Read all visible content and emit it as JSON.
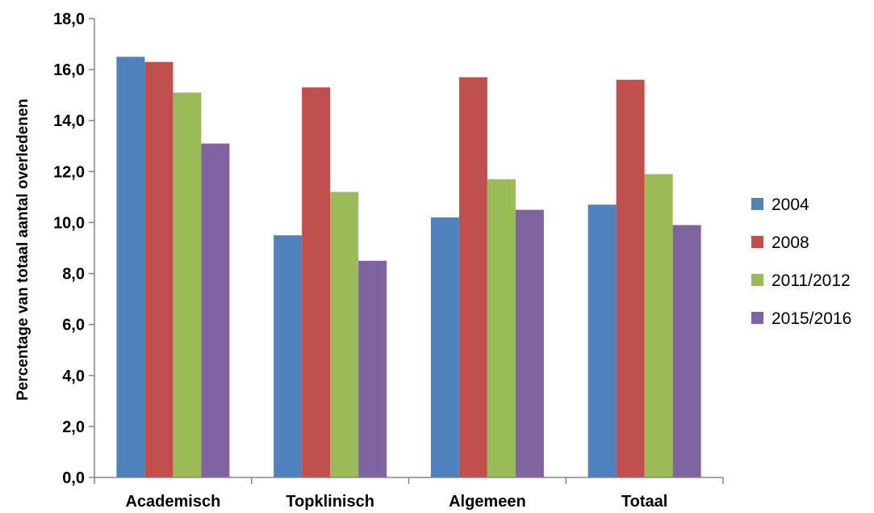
{
  "chart_data": {
    "type": "bar",
    "title": "",
    "xlabel": "",
    "ylabel": "Percentage van totaal aantal overledenen",
    "categories": [
      "Academisch",
      "Topklinisch",
      "Algemeen",
      "Totaal"
    ],
    "series": [
      {
        "name": "2004",
        "color": "#4F81BD",
        "values": [
          16.5,
          9.5,
          10.2,
          10.7
        ]
      },
      {
        "name": "2008",
        "color": "#C0504D",
        "values": [
          16.3,
          15.3,
          15.7,
          15.6
        ]
      },
      {
        "name": "2011/2012",
        "color": "#9BBB59",
        "values": [
          15.1,
          11.2,
          11.7,
          11.9
        ]
      },
      {
        "name": "2015/2016",
        "color": "#8064A2",
        "values": [
          13.1,
          8.5,
          10.5,
          9.9
        ]
      }
    ],
    "ylim": [
      0,
      18
    ],
    "yticks": [
      "0,0",
      "2,0",
      "4,0",
      "6,0",
      "8,0",
      "10,0",
      "12,0",
      "14,0",
      "16,0",
      "18,0"
    ],
    "grid": false,
    "legend_position": "right"
  }
}
